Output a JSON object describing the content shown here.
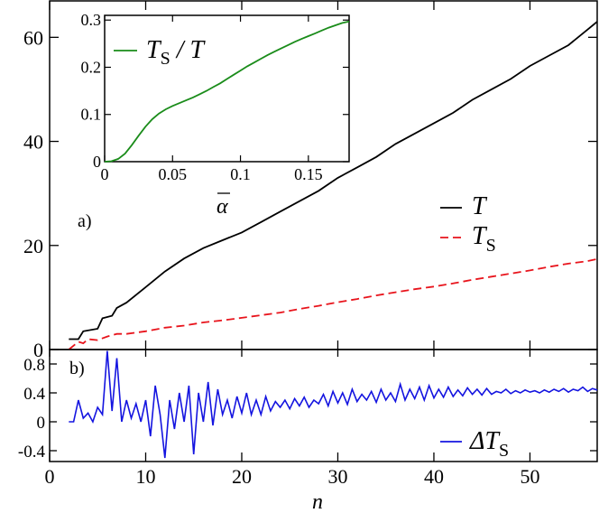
{
  "chart_data": [
    {
      "type": "line",
      "panel_label": "a)",
      "xlim": [
        0,
        57
      ],
      "ylim": [
        0,
        67
      ],
      "yticks": [
        0,
        20,
        40,
        60
      ],
      "grid": false,
      "legend_position": "right",
      "series": [
        {
          "name": "T",
          "color": "#000000",
          "dash": "solid",
          "x": [
            2,
            3,
            3.5,
            5,
            5.5,
            6.5,
            7,
            8,
            10,
            12,
            14,
            16,
            18,
            20,
            22,
            24,
            26,
            28,
            30,
            32,
            34,
            36,
            38,
            40,
            42,
            44,
            46,
            48,
            50,
            52,
            54,
            56,
            57
          ],
          "y": [
            2,
            2,
            3.5,
            4,
            6,
            6.5,
            8,
            9,
            12,
            15,
            17.5,
            19.5,
            21,
            22.5,
            24.5,
            26.5,
            28.5,
            30.5,
            33,
            35,
            37,
            39.5,
            41.5,
            43.5,
            45.5,
            48,
            50,
            52,
            54.5,
            56.5,
            58.5,
            61.5,
            63
          ]
        },
        {
          "name": "T_S",
          "color": "#e8141c",
          "dash": "dashed",
          "x": [
            2,
            3,
            3.5,
            4,
            5,
            6,
            7,
            8,
            10,
            12,
            14,
            16,
            18,
            20,
            22,
            24,
            26,
            28,
            30,
            32,
            34,
            36,
            38,
            40,
            42,
            44,
            46,
            48,
            50,
            52,
            54,
            56,
            57
          ],
          "y": [
            0,
            1.5,
            1.2,
            2,
            1.8,
            2.5,
            3,
            3,
            3.5,
            4.2,
            4.6,
            5.2,
            5.6,
            6.1,
            6.6,
            7.1,
            7.8,
            8.4,
            9.1,
            9.7,
            10.4,
            11.0,
            11.6,
            12.1,
            12.7,
            13.4,
            14.0,
            14.6,
            15.2,
            15.9,
            16.5,
            17.0,
            17.4
          ]
        }
      ],
      "legend": [
        {
          "main": "T",
          "sub": ""
        },
        {
          "main": "T",
          "sub": "S"
        }
      ]
    },
    {
      "type": "line",
      "role": "inset",
      "xlabel_main": "α",
      "xlim": [
        0,
        0.18
      ],
      "ylim": [
        0,
        0.31
      ],
      "xticks": [
        {
          "value": 0,
          "label": "0"
        },
        {
          "value": 0.05,
          "label": "0.05"
        },
        {
          "value": 0.1,
          "label": "0.1"
        },
        {
          "value": 0.15,
          "label": "0.15"
        }
      ],
      "yticks": [
        {
          "value": 0,
          "label": "0"
        },
        {
          "value": 0.1,
          "label": "0.1"
        },
        {
          "value": 0.2,
          "label": "0.2"
        },
        {
          "value": 0.3,
          "label": "0.3"
        }
      ],
      "legend_position": "top-left",
      "series": [
        {
          "name": "T_S / T",
          "color": "#1a8c1a",
          "x": [
            0,
            0.005,
            0.01,
            0.015,
            0.02,
            0.025,
            0.03,
            0.035,
            0.04,
            0.045,
            0.05,
            0.055,
            0.06,
            0.065,
            0.07,
            0.075,
            0.08,
            0.085,
            0.09,
            0.095,
            0.1,
            0.105,
            0.11,
            0.115,
            0.12,
            0.125,
            0.13,
            0.135,
            0.14,
            0.145,
            0.15,
            0.155,
            0.16,
            0.165,
            0.17,
            0.175,
            0.18
          ],
          "y": [
            0,
            0.001,
            0.006,
            0.017,
            0.035,
            0.055,
            0.074,
            0.09,
            0.102,
            0.111,
            0.118,
            0.124,
            0.13,
            0.136,
            0.143,
            0.15,
            0.158,
            0.166,
            0.175,
            0.184,
            0.193,
            0.202,
            0.21,
            0.218,
            0.226,
            0.233,
            0.24,
            0.247,
            0.254,
            0.26,
            0.266,
            0.272,
            0.278,
            0.284,
            0.289,
            0.294,
            0.297
          ]
        }
      ],
      "legend": [
        {
          "main": "T",
          "sub": "S",
          "tail": " / T"
        }
      ]
    },
    {
      "type": "line",
      "panel_label": "b)",
      "xlabel": "n",
      "xlim": [
        0,
        57
      ],
      "ylim": [
        -0.55,
        1.0
      ],
      "xticks": [
        0,
        10,
        20,
        30,
        40,
        50
      ],
      "yticks": [
        {
          "value": -0.4,
          "label": "-0.4"
        },
        {
          "value": 0,
          "label": "0"
        },
        {
          "value": 0.4,
          "label": "0.4"
        },
        {
          "value": 0.8,
          "label": "0.8"
        }
      ],
      "legend_position": "bottom-right",
      "series": [
        {
          "name": "ΔT_S",
          "color": "#1414e0",
          "x": [
            2,
            2.5,
            3,
            3.5,
            4,
            4.5,
            5,
            5.5,
            6,
            6.5,
            7,
            7.5,
            8,
            8.5,
            9,
            9.5,
            10,
            10.5,
            11,
            11.5,
            12,
            12.5,
            13,
            13.5,
            14,
            14.5,
            15,
            15.5,
            16,
            16.5,
            17,
            17.5,
            18,
            18.5,
            19,
            19.5,
            20,
            20.5,
            21,
            21.5,
            22,
            22.5,
            23,
            23.5,
            24,
            24.5,
            25,
            25.5,
            26,
            26.5,
            27,
            27.5,
            28,
            28.5,
            29,
            29.5,
            30,
            30.5,
            31,
            31.5,
            32,
            32.5,
            33,
            33.5,
            34,
            34.5,
            35,
            35.5,
            36,
            36.5,
            37,
            37.5,
            38,
            38.5,
            39,
            39.5,
            40,
            40.5,
            41,
            41.5,
            42,
            42.5,
            43,
            43.5,
            44,
            44.5,
            45,
            45.5,
            46,
            46.5,
            47,
            47.5,
            48,
            48.5,
            49,
            49.5,
            50,
            50.5,
            51,
            51.5,
            52,
            52.5,
            53,
            53.5,
            54,
            54.5,
            55,
            55.5,
            56,
            56.5,
            57
          ],
          "y": [
            0,
            0,
            0.3,
            0.05,
            0.12,
            0.0,
            0.2,
            0.1,
            0.98,
            0.15,
            0.88,
            0.0,
            0.3,
            0.05,
            0.25,
            0.0,
            0.3,
            -0.2,
            0.5,
            0.1,
            -0.5,
            0.3,
            -0.1,
            0.4,
            0.0,
            0.5,
            -0.45,
            0.4,
            0.0,
            0.55,
            -0.05,
            0.45,
            0.1,
            0.3,
            0.05,
            0.35,
            0.12,
            0.4,
            0.1,
            0.3,
            0.1,
            0.35,
            0.15,
            0.28,
            0.2,
            0.3,
            0.18,
            0.32,
            0.22,
            0.34,
            0.2,
            0.3,
            0.25,
            0.38,
            0.22,
            0.42,
            0.26,
            0.4,
            0.24,
            0.45,
            0.28,
            0.38,
            0.3,
            0.42,
            0.27,
            0.45,
            0.3,
            0.4,
            0.28,
            0.52,
            0.3,
            0.45,
            0.32,
            0.48,
            0.3,
            0.5,
            0.33,
            0.45,
            0.34,
            0.48,
            0.35,
            0.44,
            0.36,
            0.47,
            0.38,
            0.45,
            0.37,
            0.46,
            0.38,
            0.42,
            0.4,
            0.45,
            0.39,
            0.43,
            0.4,
            0.44,
            0.41,
            0.43,
            0.4,
            0.44,
            0.41,
            0.45,
            0.42,
            0.46,
            0.41,
            0.45,
            0.43,
            0.48,
            0.42,
            0.46,
            0.44
          ]
        }
      ],
      "legend": [
        {
          "main": "ΔT",
          "sub": "S"
        }
      ]
    }
  ]
}
